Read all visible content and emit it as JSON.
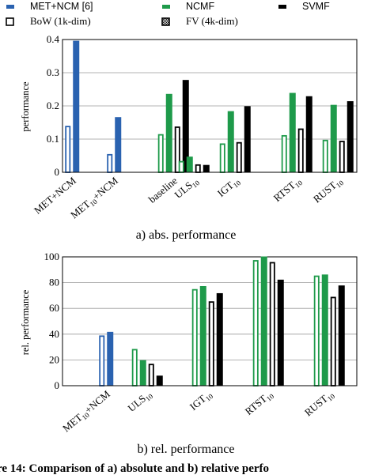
{
  "colors": {
    "blue": "#2a62b0",
    "green": "#1e9a4a",
    "black": "#000000",
    "grid": "#9a9a9a"
  },
  "legend": [
    {
      "label": "MET+NCM [6]",
      "color": "#2a62b0",
      "style": "filled",
      "sans": true
    },
    {
      "label": "NCMF",
      "color": "#1e9a4a",
      "style": "filled",
      "sans": true
    },
    {
      "label": "SVMF",
      "color": "#000000",
      "style": "filled",
      "sans": true
    },
    {
      "label": "BoW (1k-dim)",
      "color": "#000000",
      "style": "hollow",
      "sans": false
    },
    {
      "label": "FV (4k-dim)",
      "color": "#000000",
      "style": "checker",
      "sans": false
    }
  ],
  "caption": "re 14:  Comparison of a) absolute and b) relative perfo",
  "chart_data": [
    {
      "type": "bar",
      "subcaption": "a) abs. performance",
      "ylabel": "performance",
      "ylim": [
        0,
        0.4
      ],
      "yticks": [
        "0",
        "0.1",
        "0.2",
        "0.3",
        "0.4"
      ],
      "grid": true,
      "categories": [
        {
          "base": "MET+NCM",
          "sub": ""
        },
        {
          "base": "MET",
          "sub": "10",
          "rest": "+NCM"
        },
        {
          "base": "baseline",
          "sub": ""
        },
        {
          "base": "ULS",
          "sub": "10"
        },
        {
          "base": "IGT",
          "sub": "10"
        },
        {
          "base": "RTST",
          "sub": "10"
        },
        {
          "base": "RUST",
          "sub": "10"
        }
      ],
      "bars": [
        {
          "cat": 0,
          "color": "blue",
          "style": "hollow",
          "value": 0.14
        },
        {
          "cat": 0,
          "color": "blue",
          "style": "filled",
          "value": 0.395
        },
        {
          "cat": 1,
          "color": "blue",
          "style": "hollow",
          "value": 0.055
        },
        {
          "cat": 1,
          "color": "blue",
          "style": "filled",
          "value": 0.165
        },
        {
          "cat": 2,
          "color": "green",
          "style": "hollow",
          "value": 0.115
        },
        {
          "cat": 2,
          "color": "green",
          "style": "filled",
          "value": 0.235
        },
        {
          "cat": 2,
          "color": "black",
          "style": "hollow",
          "value": 0.138
        },
        {
          "cat": 2,
          "color": "black",
          "style": "filled",
          "value": 0.277
        },
        {
          "cat": 3,
          "color": "green",
          "style": "hollow",
          "value": 0.034
        },
        {
          "cat": 3,
          "color": "green",
          "style": "filled",
          "value": 0.046
        },
        {
          "cat": 3,
          "color": "black",
          "style": "hollow",
          "value": 0.024
        },
        {
          "cat": 3,
          "color": "black",
          "style": "filled",
          "value": 0.021
        },
        {
          "cat": 4,
          "color": "green",
          "style": "hollow",
          "value": 0.087
        },
        {
          "cat": 4,
          "color": "green",
          "style": "filled",
          "value": 0.183
        },
        {
          "cat": 4,
          "color": "black",
          "style": "hollow",
          "value": 0.091
        },
        {
          "cat": 4,
          "color": "black",
          "style": "filled",
          "value": 0.198
        },
        {
          "cat": 5,
          "color": "green",
          "style": "hollow",
          "value": 0.112
        },
        {
          "cat": 5,
          "color": "green",
          "style": "filled",
          "value": 0.238
        },
        {
          "cat": 5,
          "color": "black",
          "style": "hollow",
          "value": 0.132
        },
        {
          "cat": 5,
          "color": "black",
          "style": "filled",
          "value": 0.228
        },
        {
          "cat": 6,
          "color": "green",
          "style": "hollow",
          "value": 0.098
        },
        {
          "cat": 6,
          "color": "green",
          "style": "filled",
          "value": 0.202
        },
        {
          "cat": 6,
          "color": "black",
          "style": "hollow",
          "value": 0.095
        },
        {
          "cat": 6,
          "color": "black",
          "style": "filled",
          "value": 0.213
        }
      ]
    },
    {
      "type": "bar",
      "subcaption": "b) rel. performance",
      "ylabel": "rel. performance",
      "ylim": [
        0,
        100
      ],
      "yticks": [
        "0",
        "20",
        "40",
        "60",
        "80",
        "100"
      ],
      "grid": true,
      "categories": [
        {
          "base": "MET",
          "sub": "10",
          "rest": "+NCM"
        },
        {
          "base": "ULS",
          "sub": "10"
        },
        {
          "base": "IGT",
          "sub": "10"
        },
        {
          "base": "RTST",
          "sub": "10"
        },
        {
          "base": "RUST",
          "sub": "10"
        }
      ],
      "bars": [
        {
          "cat": 0,
          "color": "blue",
          "style": "hollow",
          "value": 39
        },
        {
          "cat": 0,
          "color": "blue",
          "style": "filled",
          "value": 41.5
        },
        {
          "cat": 1,
          "color": "green",
          "style": "hollow",
          "value": 28.5
        },
        {
          "cat": 1,
          "color": "green",
          "style": "filled",
          "value": 19.5
        },
        {
          "cat": 1,
          "color": "black",
          "style": "hollow",
          "value": 17
        },
        {
          "cat": 1,
          "color": "black",
          "style": "filled",
          "value": 7.5
        },
        {
          "cat": 2,
          "color": "green",
          "style": "hollow",
          "value": 75
        },
        {
          "cat": 2,
          "color": "green",
          "style": "filled",
          "value": 77
        },
        {
          "cat": 2,
          "color": "black",
          "style": "hollow",
          "value": 65.5
        },
        {
          "cat": 2,
          "color": "black",
          "style": "filled",
          "value": 71.5
        },
        {
          "cat": 3,
          "color": "green",
          "style": "hollow",
          "value": 97.5
        },
        {
          "cat": 3,
          "color": "green",
          "style": "filled",
          "value": 100
        },
        {
          "cat": 3,
          "color": "black",
          "style": "hollow",
          "value": 96
        },
        {
          "cat": 3,
          "color": "black",
          "style": "filled",
          "value": 82
        },
        {
          "cat": 4,
          "color": "green",
          "style": "hollow",
          "value": 85.5
        },
        {
          "cat": 4,
          "color": "green",
          "style": "filled",
          "value": 86
        },
        {
          "cat": 4,
          "color": "black",
          "style": "hollow",
          "value": 69
        },
        {
          "cat": 4,
          "color": "black",
          "style": "filled",
          "value": 77.5
        }
      ]
    }
  ]
}
